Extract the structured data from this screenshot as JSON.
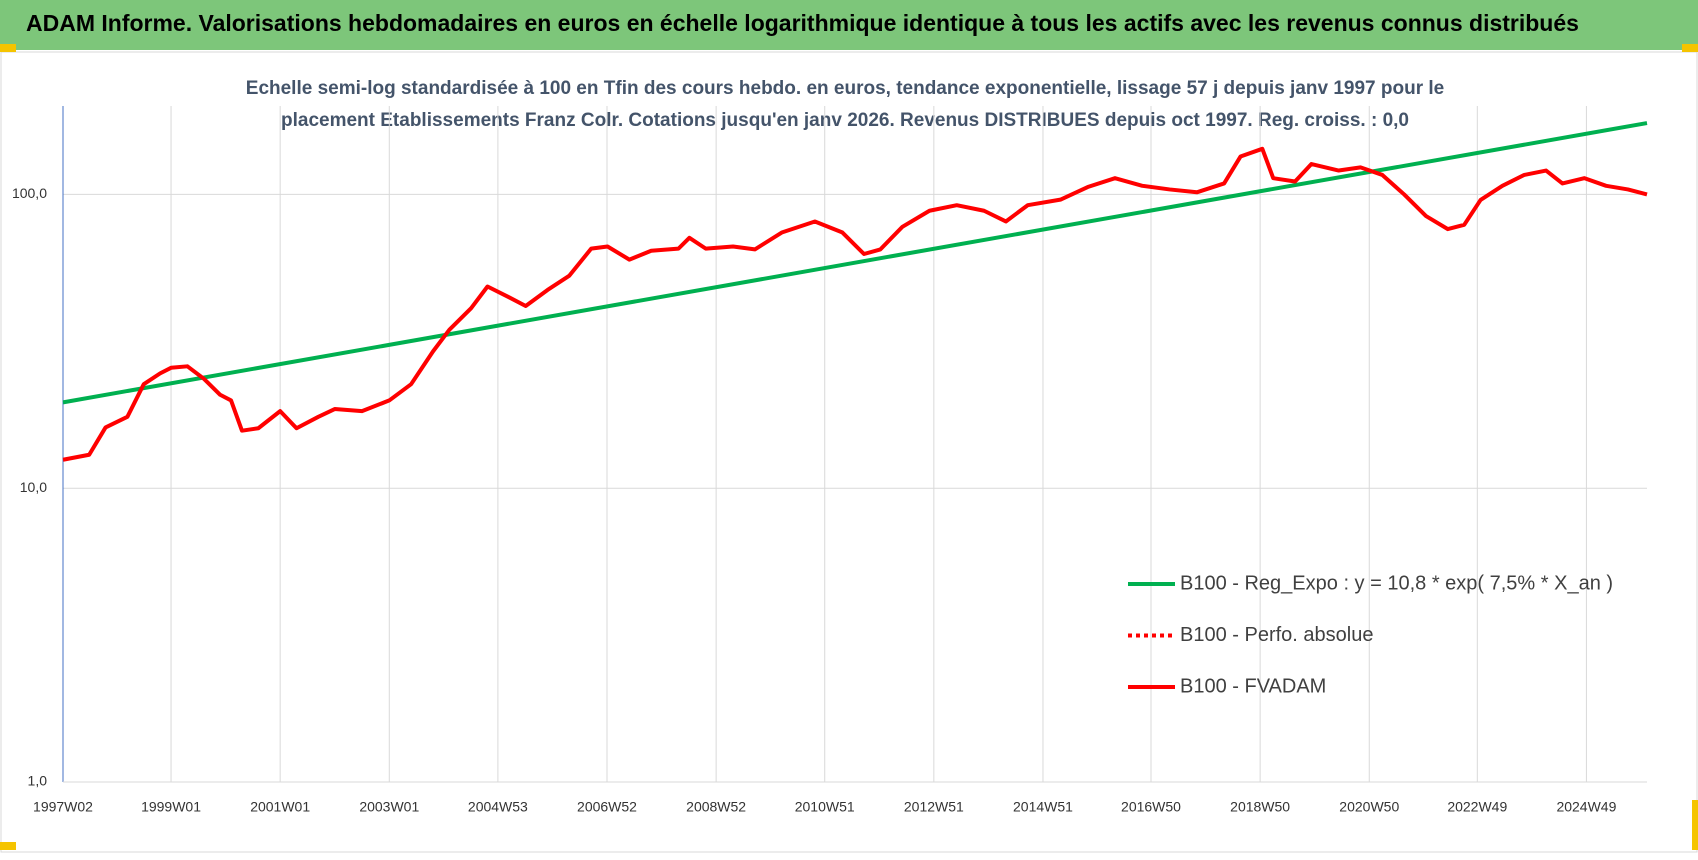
{
  "chart_data": {
    "type": "line",
    "header": "ADAM Informe. Valorisations hebdomadaires en euros en échelle logarithmique identique à tous les actifs avec les revenus connus distribués",
    "title": [
      "Echelle semi-log standardisée à 100 en Tfin des cours hebdo. en euros, tendance exponentielle, lissage 57 j depuis janv 1997 pour le",
      "placement Etablissements Franz Colr. Cotations jusqu'en janv 2026. Revenus DISTRIBUES depuis oct 1997. Reg. croiss. : 0,0"
    ],
    "log_scale": true,
    "grid": true,
    "xlim": [
      1997.02,
      2026.05
    ],
    "xticks": [
      {
        "value": 1997.02,
        "label": "1997W02"
      },
      {
        "value": 1999.0,
        "label": "1999W01"
      },
      {
        "value": 2001.0,
        "label": "2001W01"
      },
      {
        "value": 2003.0,
        "label": "2003W01"
      },
      {
        "value": 2004.99,
        "label": "2004W53"
      },
      {
        "value": 2006.99,
        "label": "2006W52"
      },
      {
        "value": 2008.99,
        "label": "2008W52"
      },
      {
        "value": 2010.98,
        "label": "2010W51"
      },
      {
        "value": 2012.98,
        "label": "2012W51"
      },
      {
        "value": 2014.98,
        "label": "2014W51"
      },
      {
        "value": 2016.96,
        "label": "2016W50"
      },
      {
        "value": 2018.96,
        "label": "2018W50"
      },
      {
        "value": 2020.96,
        "label": "2020W50"
      },
      {
        "value": 2022.94,
        "label": "2022W49"
      },
      {
        "value": 2024.94,
        "label": "2024W49"
      }
    ],
    "ylim": [
      1,
      200
    ],
    "yticks": [
      {
        "value": 1,
        "label": "1,0"
      },
      {
        "value": 10,
        "label": "10,0"
      },
      {
        "value": 100,
        "label": "100,0"
      }
    ],
    "series": [
      {
        "name": "B100 - Reg_Expo : y = 10,8 * exp( 7,5% *  X_an )",
        "color": "#00b050",
        "x": [
          1997.02,
          2026.05
        ],
        "values": [
          19.6,
          175
        ]
      },
      {
        "name": "B100 - Perfo. absolue",
        "color": "#ff0000",
        "dash": true,
        "x": [],
        "values": []
      },
      {
        "name": "B100 - FVADAM",
        "color": "#ff0000",
        "x": [
          1997.02,
          1997.5,
          1997.8,
          1998.2,
          1998.5,
          1998.8,
          1999.0,
          1999.3,
          1999.6,
          1999.9,
          2000.1,
          2000.3,
          2000.6,
          2001.0,
          2001.3,
          2001.7,
          2002.0,
          2002.5,
          2003.0,
          2003.4,
          2003.8,
          2004.1,
          2004.5,
          2004.8,
          2005.2,
          2005.5,
          2005.9,
          2006.3,
          2006.7,
          2007.0,
          2007.4,
          2007.8,
          2008.3,
          2008.5,
          2008.8,
          2009.3,
          2009.7,
          2010.2,
          2010.8,
          2011.3,
          2011.7,
          2012.0,
          2012.4,
          2012.9,
          2013.4,
          2013.9,
          2014.3,
          2014.7,
          2015.3,
          2015.8,
          2016.3,
          2016.8,
          2017.3,
          2017.8,
          2018.3,
          2018.6,
          2019.0,
          2019.2,
          2019.6,
          2019.9,
          2020.4,
          2020.8,
          2021.2,
          2021.6,
          2022.0,
          2022.4,
          2022.7,
          2023.0,
          2023.4,
          2023.8,
          2024.2,
          2024.5,
          2024.9,
          2025.3,
          2025.7,
          2026.05
        ],
        "values": [
          12.5,
          13.0,
          16.1,
          17.5,
          22.6,
          24.6,
          25.7,
          26,
          23.6,
          20.8,
          19.9,
          15.7,
          16,
          18.3,
          16,
          17.5,
          18.6,
          18.3,
          19.9,
          22.6,
          29.2,
          34.6,
          41,
          48.6,
          44.6,
          41.7,
          47.3,
          52.9,
          65.4,
          66.5,
          60,
          64.3,
          65.4,
          71.2,
          65.4,
          66.5,
          65,
          74.3,
          80.9,
          74.3,
          62.7,
          65,
          77.5,
          88,
          91.9,
          88,
          80.9,
          91.9,
          96,
          106,
          113.6,
          107,
          104,
          101.7,
          109,
          134.6,
          143,
          113.6,
          110.7,
          126.9,
          120.6,
          123.6,
          116.5,
          100,
          84.4,
          76.2,
          78.8,
          95.8,
          107,
          116.5,
          120.6,
          109,
          113.6,
          107,
          104,
          100
        ]
      }
    ]
  }
}
